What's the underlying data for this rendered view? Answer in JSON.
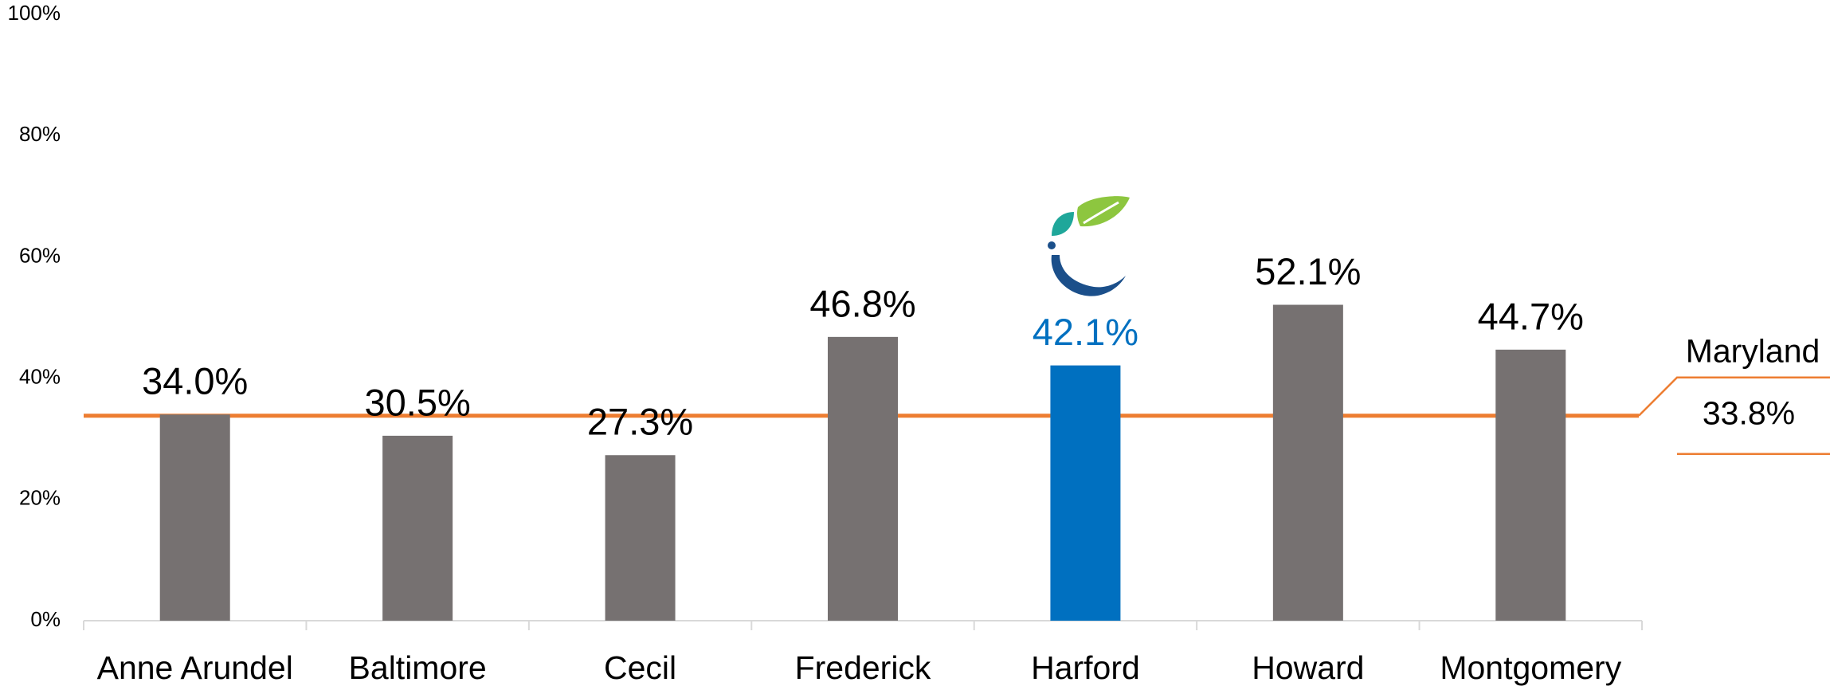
{
  "chart_data": {
    "type": "bar",
    "categories": [
      "Anne Arundel",
      "Baltimore",
      "Cecil",
      "Frederick",
      "Harford",
      "Howard",
      "Montgomery"
    ],
    "values": [
      34.0,
      30.5,
      27.3,
      46.8,
      42.1,
      52.1,
      44.7
    ],
    "value_labels": [
      "34.0%",
      "30.5%",
      "27.3%",
      "46.8%",
      "42.1%",
      "52.1%",
      "44.7%"
    ],
    "colors": [
      "#767171",
      "#767171",
      "#767171",
      "#767171",
      "#0070c0",
      "#767171",
      "#767171"
    ],
    "ylim": [
      0,
      100
    ],
    "yticks": [
      {
        "value": 0,
        "label": "0%"
      },
      {
        "value": 20,
        "label": "20%"
      },
      {
        "value": 40,
        "label": "40%"
      },
      {
        "value": 60,
        "label": "60%"
      },
      {
        "value": 80,
        "label": "80%"
      },
      {
        "value": 100,
        "label": "100%"
      }
    ],
    "grid": false,
    "reference_line": {
      "name": "Maryland",
      "value": 33.8,
      "label": "33.8%",
      "color": "#ed7d31"
    }
  }
}
